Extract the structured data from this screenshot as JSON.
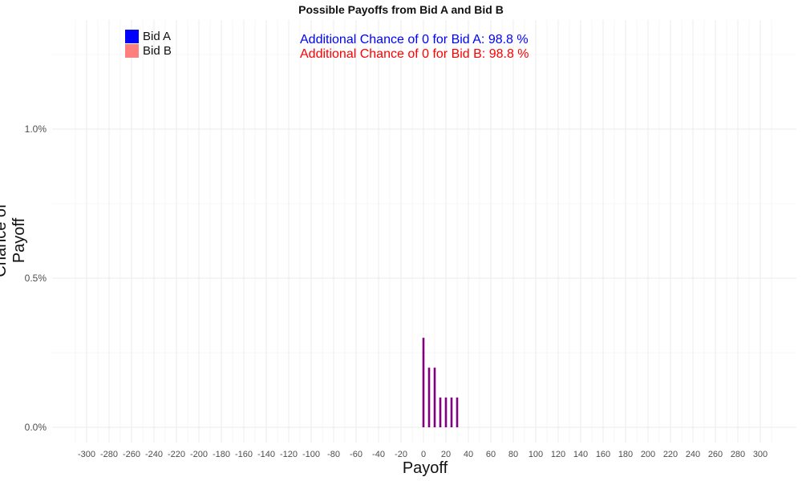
{
  "chart_data": {
    "type": "bar",
    "title": "Possible Payoffs from Bid A and Bid B",
    "xlabel": "Payoff",
    "ylabel": "Chance of Payoff",
    "xlim": [
      -310,
      310
    ],
    "ylim": [
      0,
      1.25
    ],
    "x_ticks": [
      -300,
      -280,
      -260,
      -240,
      -220,
      -200,
      -180,
      -160,
      -140,
      -120,
      -100,
      -80,
      -60,
      -40,
      -20,
      0,
      20,
      40,
      60,
      80,
      100,
      120,
      140,
      160,
      180,
      200,
      220,
      240,
      260,
      280,
      300
    ],
    "x_tick_labels": [
      "-300",
      "-280",
      "-260",
      "-240",
      "-220",
      "-200",
      "-180",
      "-160",
      "-140",
      "-120",
      "-100",
      "-80",
      "-60",
      "-40",
      "-20",
      "0",
      "20",
      "40",
      "60",
      "80",
      "100",
      "120",
      "140",
      "160",
      "180",
      "200",
      "220",
      "240",
      "260",
      "280",
      "300"
    ],
    "y_ticks": [
      0,
      0.5,
      1.0
    ],
    "y_tick_labels": [
      "0.0%",
      "0.5%",
      "1.0%"
    ],
    "grid": true,
    "legend_position": "top-left",
    "x": [
      0,
      5,
      10,
      15,
      20,
      25,
      30
    ],
    "series": [
      {
        "name": "Bid A",
        "color": "#0000ff",
        "values": [
          0.3,
          0.2,
          0.2,
          0.1,
          0.1,
          0.1,
          0.1
        ]
      },
      {
        "name": "Bid B",
        "color": "#ff7f7f",
        "values": [
          0.3,
          0.2,
          0.2,
          0.1,
          0.1,
          0.1,
          0.1
        ]
      }
    ],
    "overlap_color": "#800080",
    "annotations": [
      {
        "text": "Additional Chance of 0 for Bid A:  98.8 %",
        "color": "#0000ff"
      },
      {
        "text": "Additional Chance of 0 for Bid B:  98.8 %",
        "color": "#ff0000"
      }
    ]
  }
}
